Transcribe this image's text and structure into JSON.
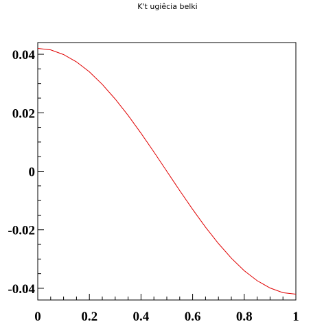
{
  "chart_data": {
    "type": "line",
    "title": "K't ugiêcia belki",
    "xlabel": "",
    "ylabel": "",
    "xlim": [
      0,
      1
    ],
    "ylim": [
      -0.044,
      0.044
    ],
    "xticks": [
      0,
      0.2,
      0.4,
      0.6,
      0.8,
      1
    ],
    "xtick_labels": [
      "0",
      "0.2",
      "0.4",
      "0.6",
      "0.8",
      "1"
    ],
    "yticks": [
      -0.04,
      -0.02,
      0,
      0.02,
      0.04
    ],
    "ytick_labels": [
      "-0.04",
      "-0.02",
      "0",
      "0.02",
      "0.04"
    ],
    "grid": false,
    "legend": "none",
    "series": [
      {
        "color": "#e00000",
        "x": [
          0,
          0.05,
          0.1,
          0.15,
          0.2,
          0.25,
          0.3,
          0.35,
          0.4,
          0.45,
          0.5,
          0.55,
          0.6,
          0.65,
          0.7,
          0.75,
          0.8,
          0.85,
          0.9,
          0.95,
          1
        ],
        "y": [
          0.042,
          0.0415,
          0.0399,
          0.0374,
          0.034,
          0.0297,
          0.0247,
          0.0191,
          0.013,
          0.0066,
          0.0,
          -0.0066,
          -0.013,
          -0.0191,
          -0.0247,
          -0.0297,
          -0.034,
          -0.0374,
          -0.0399,
          -0.0415,
          -0.042
        ]
      }
    ]
  }
}
